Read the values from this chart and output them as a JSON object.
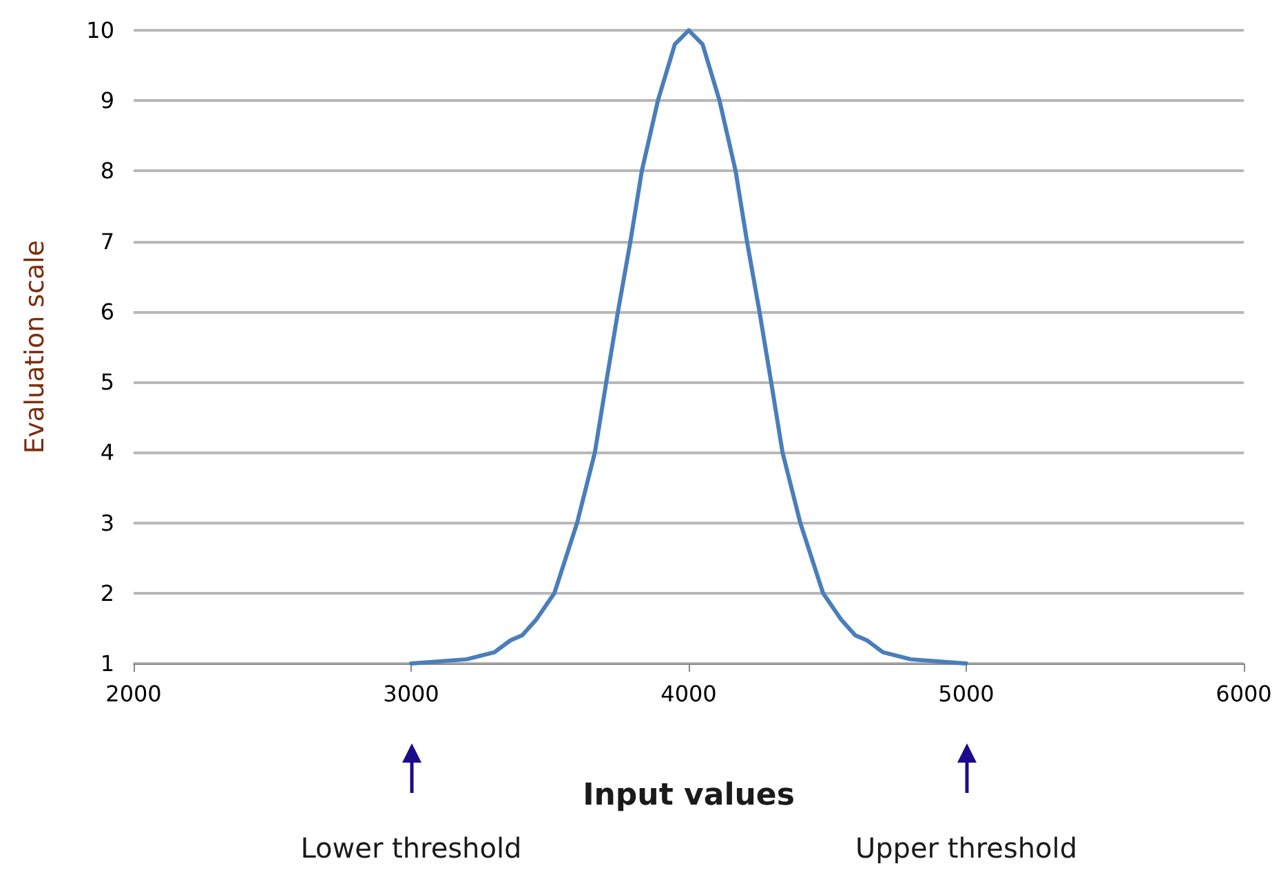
{
  "chart_data": {
    "type": "line",
    "xlabel": "Input values",
    "ylabel": "Evaluation scale",
    "xlim": [
      2000,
      6000
    ],
    "xticks": [
      2000,
      3000,
      4000,
      5000,
      6000
    ],
    "ylim": [
      1,
      10
    ],
    "yticks": [
      1,
      2,
      3,
      4,
      5,
      6,
      7,
      8,
      9,
      10
    ],
    "grid": "y",
    "marker": "none",
    "line_style": "solid",
    "series": [
      {
        "color": "#4a7ebb",
        "x": [
          3000,
          3200,
          3300,
          3358,
          3400,
          3450,
          3516,
          3598,
          3662,
          3703,
          3745,
          3790,
          3831,
          3889,
          3950,
          4000,
          4050,
          4111,
          4169,
          4210,
          4255,
          4297,
          4338,
          4402,
          4484,
          4550,
          4600,
          4642,
          4700,
          4800,
          5000
        ],
        "values": [
          1,
          1.06,
          1.16,
          1.33,
          1.4,
          1.62,
          2,
          3,
          4,
          5,
          6,
          7,
          8,
          9,
          9.8,
          10,
          9.8,
          9,
          8,
          7,
          6,
          5,
          4,
          3,
          2,
          1.62,
          1.4,
          1.33,
          1.16,
          1.06,
          1
        ]
      }
    ],
    "annotations": [
      "Lower threshold",
      "Upper threshold"
    ]
  }
}
